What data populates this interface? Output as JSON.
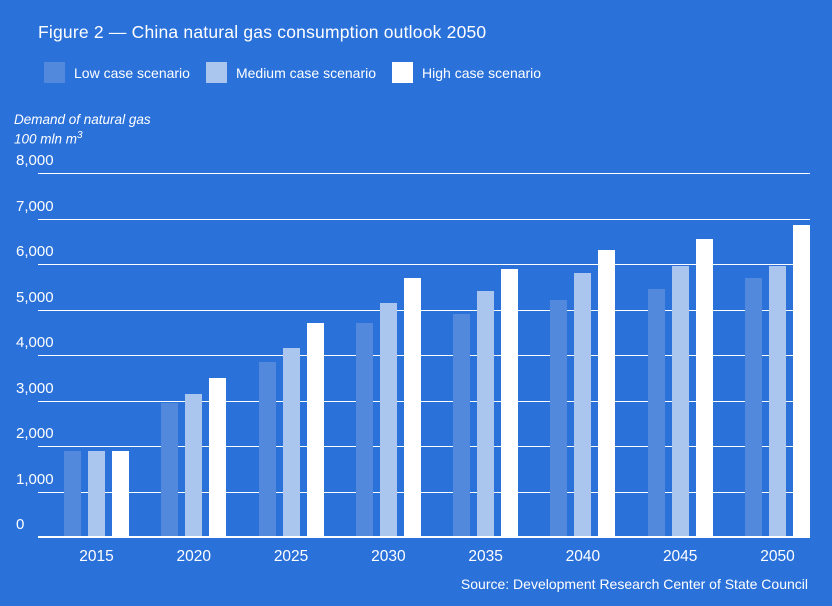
{
  "title": "Figure 2 — China natural gas consumption outlook 2050",
  "legend": [
    {
      "label": "Low case scenario",
      "color": "#5289dd"
    },
    {
      "label": "Medium case scenario",
      "color": "#aac6ef"
    },
    {
      "label": "High case scenario",
      "color": "#ffffff"
    }
  ],
  "axis": {
    "unit_line1": "Demand of natural gas",
    "unit_line2_base": "100 mln m",
    "unit_superscript": "3",
    "ticks": [
      {
        "label": "8,000",
        "value": 8000
      },
      {
        "label": "7,000",
        "value": 7000
      },
      {
        "label": "6,000",
        "value": 6000
      },
      {
        "label": "5,000",
        "value": 5000
      },
      {
        "label": "4,000",
        "value": 4000
      },
      {
        "label": "3,000",
        "value": 3000
      },
      {
        "label": "2,000",
        "value": 2000
      },
      {
        "label": "1,000",
        "value": 1000
      },
      {
        "label": "0",
        "value": 0
      }
    ]
  },
  "source": "Source: Development Research Center of State Council",
  "chart_data": {
    "type": "bar",
    "title": "Figure 2 — China natural gas consumption outlook 2050",
    "categories": [
      "2015",
      "2020",
      "2025",
      "2030",
      "2035",
      "2040",
      "2045",
      "2050"
    ],
    "series": [
      {
        "name": "Low case scenario",
        "color": "#5289dd",
        "values": [
          1900,
          2950,
          3850,
          4700,
          4900,
          5200,
          5450,
          5700
        ]
      },
      {
        "name": "Medium case scenario",
        "color": "#aac6ef",
        "values": [
          1900,
          3150,
          4150,
          5150,
          5400,
          5800,
          5950,
          5950
        ]
      },
      {
        "name": "High case scenario",
        "color": "#ffffff",
        "values": [
          1900,
          3500,
          4700,
          5700,
          5900,
          6300,
          6550,
          6850
        ]
      }
    ],
    "xlabel": "",
    "ylabel": "Demand of natural gas, 100 mln m³",
    "ylim": [
      0,
      8000
    ],
    "grid": "horizontal-only",
    "legend_position": "top-left",
    "background_color": "#2a71da"
  }
}
